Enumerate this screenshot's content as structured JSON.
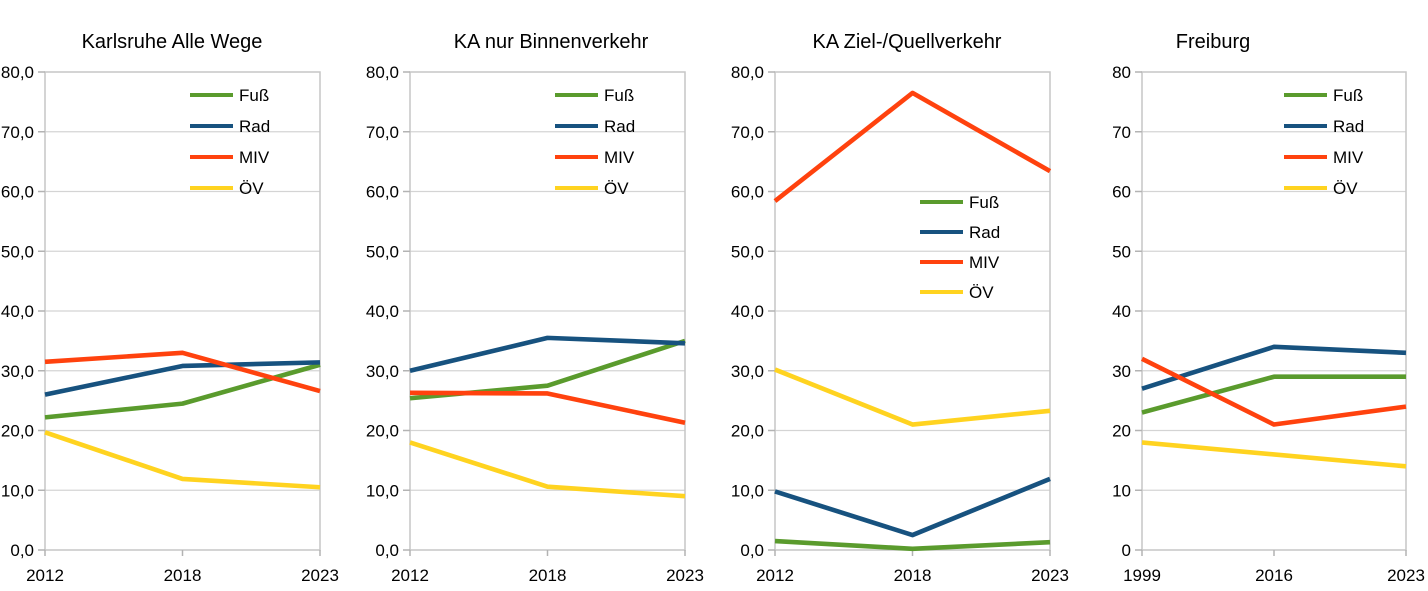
{
  "page": {
    "background_color": "#ffffff",
    "text_color": "#000000",
    "grid_color": "#d4d4d4",
    "border_color": "#c6c6c6",
    "tick_color": "#b3b3b3"
  },
  "chart_data": [
    {
      "type": "line",
      "title": "Karlsruhe Alle Wege",
      "categories": [
        "2012",
        "2018",
        "2023"
      ],
      "series": [
        {
          "name": "Fuß",
          "color": "#5A9B2D",
          "values": [
            22.2,
            24.5,
            31.0
          ]
        },
        {
          "name": "Rad",
          "color": "#17527F",
          "values": [
            26.0,
            30.8,
            31.4
          ]
        },
        {
          "name": "MIV",
          "color": "#FF420E",
          "values": [
            31.5,
            33.0,
            26.6
          ]
        },
        {
          "name": "ÖV",
          "color": "#FFD320",
          "values": [
            19.7,
            11.9,
            10.5
          ]
        }
      ],
      "ylim": [
        0,
        80
      ],
      "ytick_step": 10,
      "ytick_labels": [
        "0,0",
        "10,0",
        "20,0",
        "30,0",
        "40,0",
        "50,0",
        "60,0",
        "70,0",
        "80,0"
      ],
      "grid": true,
      "legend_position": "top-right"
    },
    {
      "type": "line",
      "title": "KA nur Binnenverkehr",
      "categories": [
        "2012",
        "2018",
        "2023"
      ],
      "series": [
        {
          "name": "Fuß",
          "color": "#5A9B2D",
          "values": [
            25.4,
            27.5,
            35.0
          ]
        },
        {
          "name": "Rad",
          "color": "#17527F",
          "values": [
            30.0,
            35.5,
            34.6
          ]
        },
        {
          "name": "MIV",
          "color": "#FF420E",
          "values": [
            26.3,
            26.2,
            21.3
          ]
        },
        {
          "name": "ÖV",
          "color": "#FFD320",
          "values": [
            18.0,
            10.6,
            9.0
          ]
        }
      ],
      "ylim": [
        0,
        80
      ],
      "ytick_step": 10,
      "ytick_labels": [
        "0,0",
        "10,0",
        "20,0",
        "30,0",
        "40,0",
        "50,0",
        "60,0",
        "70,0",
        "80,0"
      ],
      "grid": true,
      "legend_position": "top-right"
    },
    {
      "type": "line",
      "title": "KA Ziel-/Quellverkehr",
      "categories": [
        "2012",
        "2018",
        "2023"
      ],
      "series": [
        {
          "name": "Fuß",
          "color": "#5A9B2D",
          "values": [
            1.5,
            0.2,
            1.3
          ]
        },
        {
          "name": "Rad",
          "color": "#17527F",
          "values": [
            9.8,
            2.5,
            11.9
          ]
        },
        {
          "name": "MIV",
          "color": "#FF420E",
          "values": [
            58.4,
            76.5,
            63.4
          ]
        },
        {
          "name": "ÖV",
          "color": "#FFD320",
          "values": [
            30.2,
            21.0,
            23.3
          ]
        }
      ],
      "ylim": [
        0,
        80
      ],
      "ytick_step": 10,
      "ytick_labels": [
        "0,0",
        "10,0",
        "20,0",
        "30,0",
        "40,0",
        "50,0",
        "60,0",
        "70,0",
        "80,0"
      ],
      "grid": true,
      "legend_position": "middle-right"
    },
    {
      "type": "line",
      "title": "Freiburg",
      "categories": [
        "1999",
        "2016",
        "2023"
      ],
      "series": [
        {
          "name": "Fuß",
          "color": "#5A9B2D",
          "values": [
            23,
            29,
            29
          ]
        },
        {
          "name": "Rad",
          "color": "#17527F",
          "values": [
            27,
            34,
            33
          ]
        },
        {
          "name": "MIV",
          "color": "#FF420E",
          "values": [
            32,
            21,
            24
          ]
        },
        {
          "name": "ÖV",
          "color": "#FFD320",
          "values": [
            18,
            16,
            14
          ]
        }
      ],
      "ylim": [
        0,
        80
      ],
      "ytick_step": 10,
      "ytick_labels": [
        "0",
        "10",
        "20",
        "30",
        "40",
        "50",
        "60",
        "70",
        "80"
      ],
      "grid": true,
      "legend_position": "top-right"
    }
  ]
}
